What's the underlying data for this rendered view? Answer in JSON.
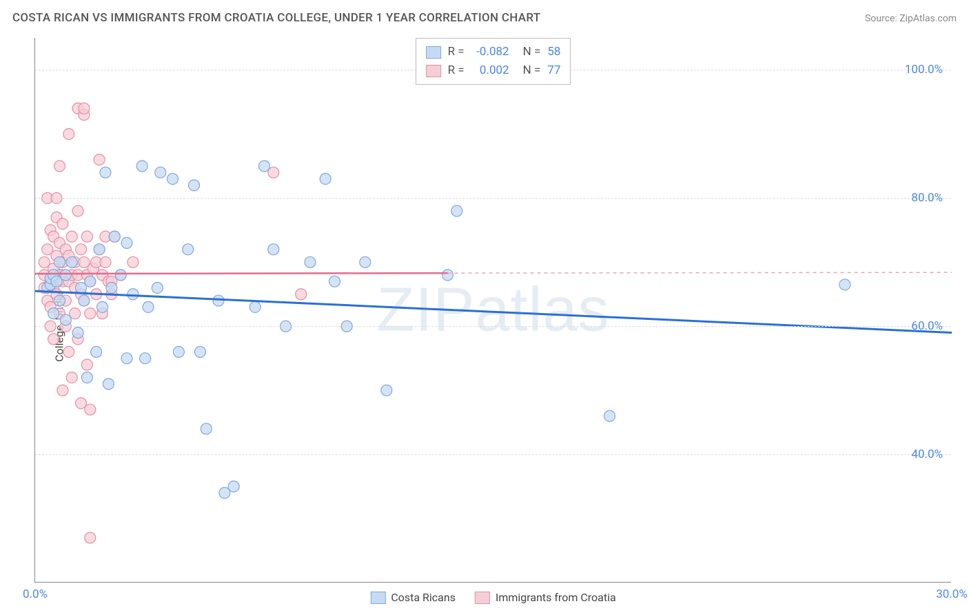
{
  "header": {
    "title": "COSTA RICAN VS IMMIGRANTS FROM CROATIA COLLEGE, UNDER 1 YEAR CORRELATION CHART",
    "source": "Source: ZipAtlas.com"
  },
  "chart": {
    "type": "scatter",
    "y_axis_label": "College, Under 1 year",
    "x_range": [
      0,
      30
    ],
    "y_range": [
      20,
      105
    ],
    "x_ticks": [
      {
        "value": 0,
        "label": "0.0%",
        "color": "#4a86e8"
      },
      {
        "value": 30,
        "label": "30.0%",
        "color": "#4a86e8"
      }
    ],
    "y_ticks": [
      {
        "value": 40,
        "label": "40.0%"
      },
      {
        "value": 60,
        "label": "60.0%"
      },
      {
        "value": 80,
        "label": "80.0%"
      },
      {
        "value": 100,
        "label": "100.0%"
      }
    ],
    "y_tick_color": "#4a86e8",
    "grid_color": "#dddddd",
    "axis_color": "#888888",
    "background_color": "#ffffff",
    "marker_radius": 8,
    "marker_stroke_width": 1.2,
    "series": [
      {
        "name": "Costa Ricans",
        "fill": "#c6daf3",
        "stroke": "#7fa8d9",
        "opacity": 0.75,
        "stats": {
          "R": "-0.082",
          "N": "58"
        },
        "trend": {
          "x1": 0,
          "y1": 65.5,
          "x2": 30,
          "y2": 59.0,
          "color": "#2b6fd6",
          "width": 3,
          "dash": null
        },
        "points": [
          [
            0.4,
            66
          ],
          [
            0.5,
            66.5
          ],
          [
            0.5,
            67.5
          ],
          [
            0.6,
            68
          ],
          [
            0.6,
            62
          ],
          [
            0.7,
            67
          ],
          [
            0.8,
            64
          ],
          [
            0.8,
            70
          ],
          [
            1.0,
            61
          ],
          [
            1.0,
            68
          ],
          [
            1.2,
            70
          ],
          [
            1.4,
            59
          ],
          [
            1.5,
            66
          ],
          [
            1.6,
            64
          ],
          [
            1.7,
            52
          ],
          [
            1.8,
            67
          ],
          [
            2.0,
            56
          ],
          [
            2.1,
            72
          ],
          [
            2.2,
            63
          ],
          [
            2.3,
            84
          ],
          [
            2.4,
            51
          ],
          [
            2.5,
            66
          ],
          [
            2.6,
            74
          ],
          [
            2.8,
            68
          ],
          [
            3.0,
            55
          ],
          [
            3.0,
            73
          ],
          [
            3.2,
            65
          ],
          [
            3.5,
            85
          ],
          [
            3.6,
            55
          ],
          [
            3.7,
            63
          ],
          [
            4.0,
            66
          ],
          [
            4.1,
            84
          ],
          [
            4.5,
            83
          ],
          [
            4.7,
            56
          ],
          [
            5.0,
            72
          ],
          [
            5.2,
            82
          ],
          [
            5.4,
            56
          ],
          [
            5.6,
            44
          ],
          [
            6.0,
            64
          ],
          [
            6.2,
            34
          ],
          [
            6.5,
            35
          ],
          [
            7.2,
            63
          ],
          [
            7.5,
            85
          ],
          [
            7.8,
            72
          ],
          [
            8.2,
            60
          ],
          [
            9.0,
            70
          ],
          [
            9.5,
            83
          ],
          [
            9.8,
            67
          ],
          [
            10.2,
            60
          ],
          [
            10.8,
            70
          ],
          [
            11.5,
            50
          ],
          [
            13.5,
            68
          ],
          [
            13.8,
            78
          ],
          [
            18.8,
            46
          ],
          [
            26.5,
            66.5
          ]
        ]
      },
      {
        "name": "Immigrants from Croatia",
        "fill": "#f6cdd7",
        "stroke": "#e48fa4",
        "opacity": 0.75,
        "stats": {
          "R": "0.002",
          "N": "77"
        },
        "trend": {
          "x1": 0,
          "y1": 68.2,
          "x2": 13.5,
          "y2": 68.3,
          "color": "#e36a8c",
          "width": 2.5,
          "dash": null
        },
        "trend_ext": {
          "x1": 13.5,
          "y1": 68.3,
          "x2": 30,
          "y2": 68.4,
          "color": "#e8a5b6",
          "width": 1.5,
          "dash": "5,5"
        },
        "points": [
          [
            0.3,
            68
          ],
          [
            0.3,
            66
          ],
          [
            0.3,
            70
          ],
          [
            0.4,
            72
          ],
          [
            0.4,
            64
          ],
          [
            0.4,
            80
          ],
          [
            0.5,
            67
          ],
          [
            0.5,
            63
          ],
          [
            0.5,
            75
          ],
          [
            0.5,
            60
          ],
          [
            0.6,
            69
          ],
          [
            0.6,
            74
          ],
          [
            0.6,
            66
          ],
          [
            0.6,
            58
          ],
          [
            0.7,
            71
          ],
          [
            0.7,
            65
          ],
          [
            0.7,
            77
          ],
          [
            0.7,
            80
          ],
          [
            0.8,
            68
          ],
          [
            0.8,
            62
          ],
          [
            0.8,
            73
          ],
          [
            0.8,
            85
          ],
          [
            0.9,
            67
          ],
          [
            0.9,
            70
          ],
          [
            0.9,
            50
          ],
          [
            0.9,
            76
          ],
          [
            1.0,
            72
          ],
          [
            1.0,
            68
          ],
          [
            1.0,
            64
          ],
          [
            1.0,
            60
          ],
          [
            1.1,
            90
          ],
          [
            1.1,
            67
          ],
          [
            1.1,
            56
          ],
          [
            1.1,
            71
          ],
          [
            1.2,
            74
          ],
          [
            1.2,
            52
          ],
          [
            1.2,
            68
          ],
          [
            1.3,
            70
          ],
          [
            1.3,
            66
          ],
          [
            1.3,
            62
          ],
          [
            1.4,
            78
          ],
          [
            1.4,
            94
          ],
          [
            1.4,
            68
          ],
          [
            1.4,
            58
          ],
          [
            1.5,
            72
          ],
          [
            1.5,
            65
          ],
          [
            1.5,
            48
          ],
          [
            1.6,
            70
          ],
          [
            1.6,
            93
          ],
          [
            1.6,
            94
          ],
          [
            1.6,
            64
          ],
          [
            1.7,
            68
          ],
          [
            1.7,
            74
          ],
          [
            1.7,
            54
          ],
          [
            1.8,
            67
          ],
          [
            1.8,
            62
          ],
          [
            1.8,
            47
          ],
          [
            1.9,
            69
          ],
          [
            2.0,
            70
          ],
          [
            2.0,
            65
          ],
          [
            2.1,
            72
          ],
          [
            2.1,
            86
          ],
          [
            2.2,
            68
          ],
          [
            2.2,
            62
          ],
          [
            2.3,
            70
          ],
          [
            2.3,
            74
          ],
          [
            2.4,
            67
          ],
          [
            2.5,
            65
          ],
          [
            2.5,
            67
          ],
          [
            2.6,
            74
          ],
          [
            2.8,
            68
          ],
          [
            1.8,
            27
          ],
          [
            3.2,
            70
          ],
          [
            7.8,
            84
          ],
          [
            8.7,
            65
          ]
        ]
      }
    ],
    "legend_bottom": [
      {
        "swatch_fill": "#c6daf3",
        "swatch_stroke": "#7fa8d9",
        "label": "Costa Ricans"
      },
      {
        "swatch_fill": "#f6cdd7",
        "swatch_stroke": "#e48fa4",
        "label": "Immigrants from Croatia"
      }
    ],
    "stats_box": {
      "value_color": "#4a86e8",
      "label_color": "#555555"
    },
    "watermark": "ZIPatlas"
  }
}
